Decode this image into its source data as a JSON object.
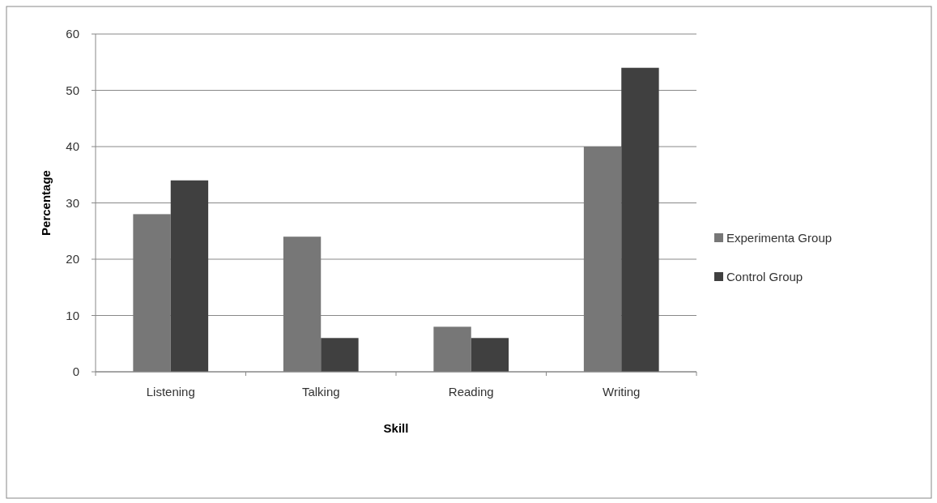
{
  "chart_data": {
    "type": "bar",
    "xlabel": "Skill",
    "ylabel": "Percentage",
    "categories": [
      "Listening",
      "Talking",
      "Reading",
      "Writing"
    ],
    "series": [
      {
        "name": "Experimenta  Group",
        "color": "#777777",
        "values": [
          28,
          24,
          8,
          40
        ]
      },
      {
        "name": "Control Group",
        "color": "#404040",
        "values": [
          34,
          6,
          6,
          54
        ]
      }
    ],
    "ylim": [
      0,
      60
    ],
    "yticks": [
      0,
      10,
      20,
      30,
      40,
      50,
      60
    ],
    "grid": "y",
    "legend": "right"
  }
}
